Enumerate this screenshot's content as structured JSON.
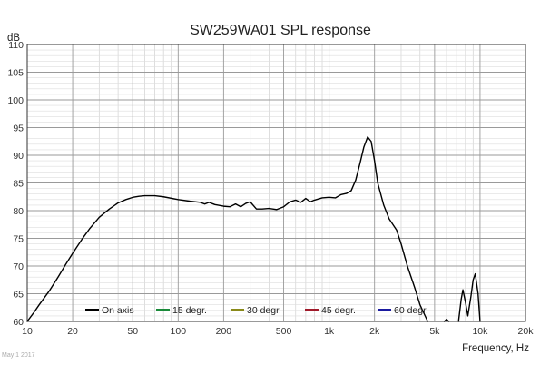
{
  "chart_data": {
    "type": "line",
    "title": "SW259WA01 SPL response",
    "xlabel": "Frequency, Hz",
    "ylabel": "dB",
    "x_scale": "log",
    "xlim": [
      10,
      20000
    ],
    "ylim": [
      60,
      110
    ],
    "x_ticks": [
      10,
      20,
      50,
      100,
      200,
      500,
      1000,
      2000,
      5000,
      10000,
      20000
    ],
    "x_tick_labels": [
      "10",
      "20",
      "50",
      "100",
      "200",
      "500",
      "1k",
      "2k",
      "5k",
      "10k",
      "20k"
    ],
    "y_ticks": [
      60,
      65,
      70,
      75,
      80,
      85,
      90,
      95,
      100,
      105,
      110
    ],
    "grid": true,
    "legend_position": "bottom",
    "legend": [
      {
        "name": "On axis",
        "color": "#000000"
      },
      {
        "name": "15 degr.",
        "color": "#1a8a3a"
      },
      {
        "name": "30 degr.",
        "color": "#8a8a1a"
      },
      {
        "name": "45 degr.",
        "color": "#a01a2a"
      },
      {
        "name": "60 degr.",
        "color": "#1a1aa0"
      }
    ],
    "series": [
      {
        "name": "On axis",
        "color": "#000000",
        "x": [
          10,
          11,
          12,
          14,
          16,
          18,
          20,
          23,
          26,
          30,
          35,
          40,
          45,
          50,
          55,
          60,
          70,
          80,
          100,
          120,
          140,
          150,
          160,
          175,
          200,
          220,
          240,
          260,
          280,
          300,
          330,
          360,
          400,
          450,
          500,
          550,
          600,
          650,
          700,
          750,
          800,
          900,
          1000,
          1100,
          1200,
          1300,
          1400,
          1500,
          1600,
          1700,
          1800,
          1900,
          2000,
          2100,
          2300,
          2500,
          2800,
          3000,
          3300,
          3700,
          4000,
          4500
        ],
        "y": [
          60,
          61.5,
          63,
          65.5,
          68,
          70.3,
          72.3,
          74.8,
          76.8,
          78.8,
          80.3,
          81.4,
          82,
          82.4,
          82.6,
          82.7,
          82.7,
          82.5,
          82,
          81.7,
          81.5,
          81.2,
          81.5,
          81.1,
          80.8,
          80.7,
          81.2,
          80.7,
          81.3,
          81.6,
          80.3,
          80.3,
          80.4,
          80.2,
          80.7,
          81.6,
          81.9,
          81.5,
          82.2,
          81.6,
          81.9,
          82.3,
          82.4,
          82.3,
          82.9,
          83.1,
          83.6,
          85.5,
          88.5,
          91.5,
          93.3,
          92.5,
          89,
          85,
          81,
          78.5,
          76.5,
          74,
          70,
          66,
          63,
          60
        ]
      },
      {
        "name": "On axis",
        "color": "#000000",
        "x": [
          5800,
          6000,
          6200
        ],
        "y": [
          60,
          60.4,
          60
        ]
      },
      {
        "name": "On axis",
        "color": "#000000",
        "x": [
          7200,
          7500,
          7700,
          8000,
          8300,
          8700,
          9000,
          9300,
          9700,
          10000
        ],
        "y": [
          60,
          64,
          65.7,
          63.5,
          61,
          64.5,
          67.5,
          68.6,
          65,
          60
        ]
      }
    ]
  },
  "footer_note": "May 1 2017"
}
